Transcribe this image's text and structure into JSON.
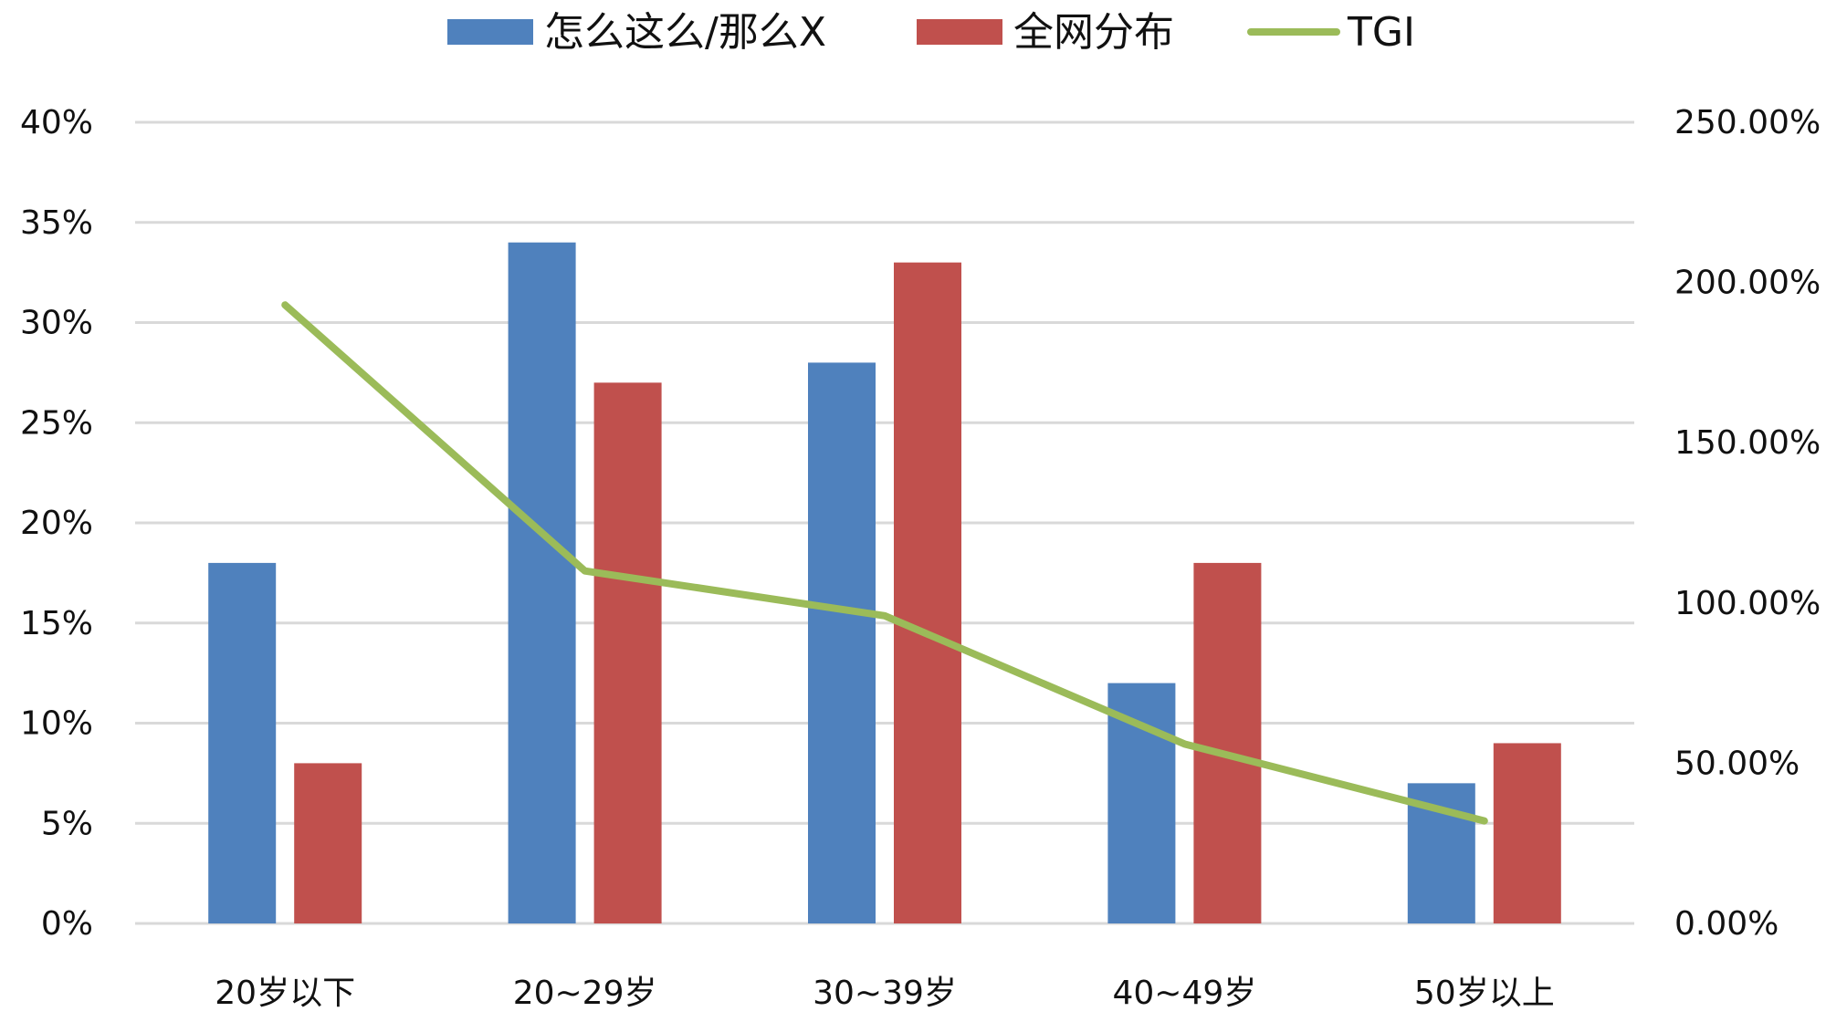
{
  "chart_data": {
    "type": "bar",
    "categories": [
      "20岁以下",
      "20~29岁",
      "30~39岁",
      "40~49岁",
      "50岁以上"
    ],
    "series": [
      {
        "name": "怎么这么/那么X",
        "type": "bar",
        "axis": "left",
        "color": "#4f81bd",
        "values": [
          18,
          34,
          28,
          12,
          7
        ]
      },
      {
        "name": "全网分布",
        "type": "bar",
        "axis": "left",
        "color": "#c0504d",
        "values": [
          8,
          27,
          33,
          18,
          9
        ]
      },
      {
        "name": "TGI",
        "type": "line",
        "axis": "right",
        "color": "#9bbb59",
        "values": [
          193,
          110,
          96,
          56,
          32
        ]
      }
    ],
    "y_left": {
      "min": 0,
      "max": 40,
      "step": 5,
      "tick_labels": [
        "0%",
        "5%",
        "10%",
        "15%",
        "20%",
        "25%",
        "30%",
        "35%",
        "40%"
      ]
    },
    "y_right": {
      "min": 0,
      "max": 250,
      "step": 50,
      "tick_labels": [
        "0.00%",
        "50.00%",
        "100.00%",
        "150.00%",
        "200.00%",
        "250.00%"
      ]
    },
    "grid": true,
    "legend_position": "top-center"
  }
}
